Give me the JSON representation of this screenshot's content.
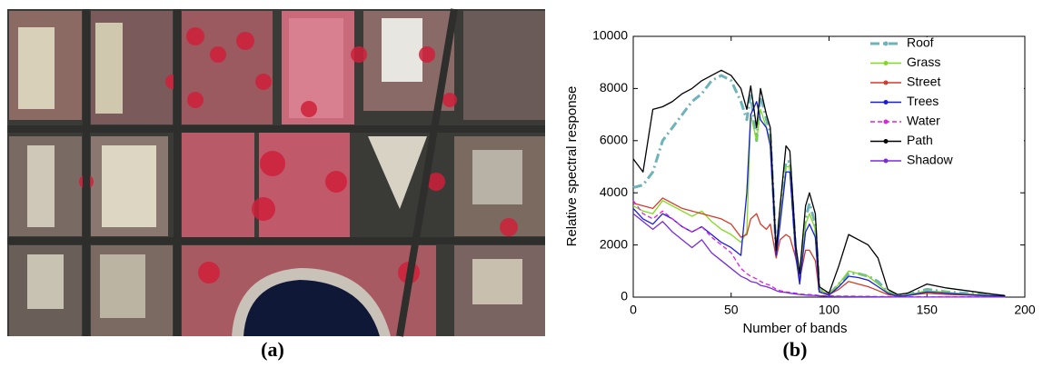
{
  "captions": [
    "(a)",
    "(b)"
  ],
  "chart_data": {
    "type": "line",
    "xlabel": "Number of bands",
    "ylabel": "Relative spectral response",
    "xlim": [
      0,
      200
    ],
    "ylim": [
      0,
      10000
    ],
    "xticks": [
      0,
      50,
      100,
      150,
      200
    ],
    "yticks": [
      0,
      2000,
      4000,
      6000,
      8000,
      10000
    ],
    "grid": false,
    "legend": "upper right",
    "x": [
      0,
      5,
      10,
      15,
      20,
      25,
      30,
      35,
      40,
      45,
      50,
      55,
      58,
      60,
      63,
      65,
      68,
      70,
      73,
      75,
      78,
      80,
      83,
      85,
      88,
      90,
      93,
      95,
      100,
      105,
      110,
      115,
      120,
      125,
      130,
      135,
      140,
      150,
      160,
      170,
      180,
      190
    ],
    "series": [
      {
        "name": "Roof",
        "color": "#6fb3ba",
        "dash": "dashdot",
        "values": [
          4200,
          4300,
          4800,
          6000,
          6500,
          7000,
          7500,
          7800,
          8300,
          8500,
          8300,
          7500,
          6800,
          7800,
          6000,
          7800,
          6800,
          6300,
          1700,
          3200,
          5200,
          5200,
          1800,
          700,
          3000,
          3600,
          2800,
          300,
          100,
          500,
          900,
          900,
          800,
          600,
          200,
          50,
          100,
          300,
          200,
          150,
          100,
          50
        ]
      },
      {
        "name": "Grass",
        "color": "#7fdc1a",
        "dash": "solid",
        "values": [
          3500,
          3300,
          3200,
          3700,
          3500,
          3300,
          3100,
          3300,
          2900,
          2600,
          2400,
          2100,
          2500,
          7000,
          6000,
          7200,
          6500,
          6000,
          1700,
          3000,
          5000,
          5000,
          1700,
          600,
          2800,
          3200,
          2600,
          300,
          100,
          500,
          1000,
          900,
          800,
          500,
          200,
          50,
          80,
          250,
          180,
          120,
          80,
          40
        ]
      },
      {
        "name": "Street",
        "color": "#d53a2a",
        "dash": "solid",
        "values": [
          3600,
          3500,
          3400,
          3800,
          3600,
          3400,
          3300,
          3200,
          3100,
          3000,
          2800,
          2300,
          2400,
          3000,
          3200,
          2800,
          2600,
          2800,
          1500,
          2200,
          2400,
          2300,
          1500,
          700,
          1800,
          1800,
          1400,
          200,
          100,
          300,
          600,
          500,
          400,
          250,
          100,
          40,
          60,
          150,
          100,
          80,
          50,
          30
        ]
      },
      {
        "name": "Trees",
        "color": "#1a1ae6",
        "dash": "solid",
        "values": [
          3400,
          3000,
          2800,
          3200,
          3000,
          2700,
          2500,
          2700,
          2400,
          2100,
          1900,
          1600,
          4000,
          7000,
          7500,
          6800,
          6500,
          5800,
          1600,
          2800,
          4800,
          4800,
          1600,
          500,
          2500,
          2800,
          2300,
          200,
          80,
          400,
          800,
          750,
          650,
          400,
          150,
          40,
          60,
          200,
          150,
          100,
          60,
          30
        ]
      },
      {
        "name": "Water",
        "color": "#e020e0",
        "dash": "dashed",
        "values": [
          3700,
          3200,
          3000,
          3300,
          3000,
          2700,
          2500,
          2700,
          2300,
          2000,
          1700,
          1100,
          900,
          800,
          700,
          600,
          500,
          450,
          300,
          250,
          200,
          180,
          150,
          120,
          100,
          100,
          80,
          60,
          50,
          40,
          40,
          30,
          30,
          20,
          20,
          15,
          15,
          10,
          10,
          10,
          10,
          5
        ]
      },
      {
        "name": "Path",
        "color": "#000000",
        "dash": "solid",
        "values": [
          5300,
          4800,
          7200,
          7300,
          7500,
          7800,
          8000,
          8300,
          8500,
          8700,
          8500,
          8000,
          7200,
          8100,
          6500,
          8000,
          7000,
          6500,
          1800,
          3500,
          5800,
          5600,
          2000,
          900,
          3500,
          4000,
          3200,
          400,
          150,
          1200,
          2400,
          2200,
          2000,
          1500,
          300,
          100,
          150,
          500,
          350,
          250,
          150,
          50
        ]
      },
      {
        "name": "Shadow",
        "color": "#7a2ae0",
        "dash": "solid",
        "values": [
          3200,
          2900,
          2600,
          2900,
          2500,
          2200,
          1900,
          2200,
          1700,
          1400,
          1100,
          800,
          700,
          600,
          550,
          450,
          400,
          350,
          250,
          200,
          180,
          150,
          120,
          100,
          80,
          70,
          60,
          50,
          30,
          20,
          20,
          15,
          15,
          10,
          10,
          5,
          5,
          5,
          5,
          5,
          5,
          5
        ]
      }
    ]
  }
}
